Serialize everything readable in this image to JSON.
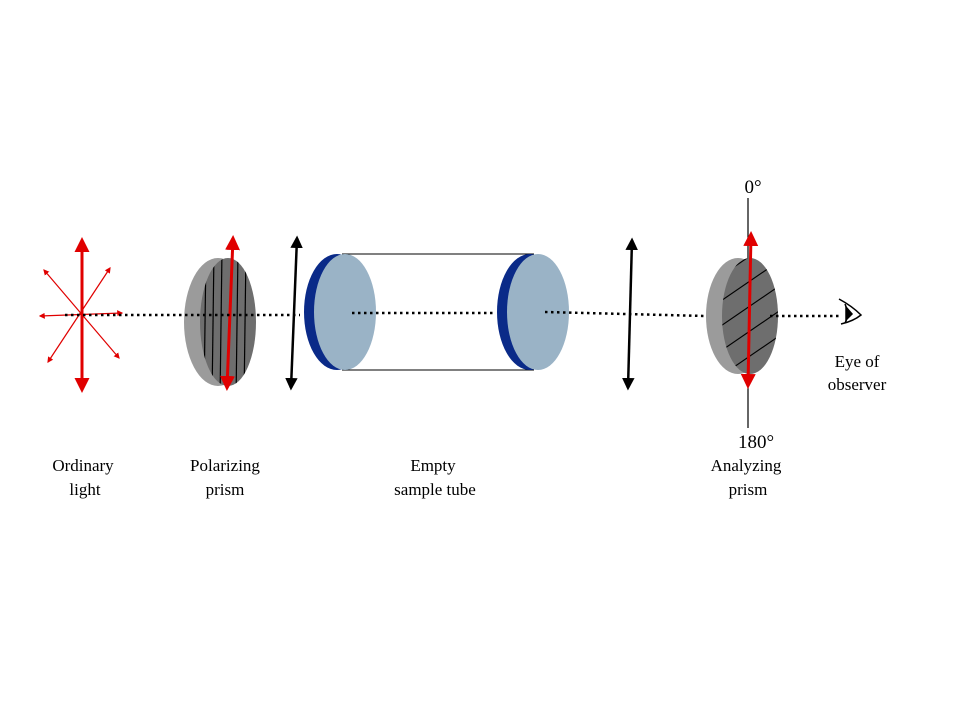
{
  "title": "Polarimeter: ordinary light through polarizing prism, empty sample tube and analyzing prism",
  "labels": {
    "ordinary_light": [
      "Ordinary",
      "light"
    ],
    "polarizing_prism": [
      "Polarizing",
      "prism"
    ],
    "sample_tube": [
      "Empty",
      "sample tube"
    ],
    "analyzing_prism": [
      "Analyzing",
      "prism"
    ],
    "observer": [
      "Eye of",
      "observer"
    ],
    "angle_top": "0°",
    "angle_bottom": "180°"
  },
  "colors": {
    "light_vector": "#e00000",
    "polarized_vector": "#000000",
    "disc_face": "#9ab3c6",
    "disc_rim": "#0a2a88",
    "prism_rim": "#9b9b9b",
    "prism_face": "#6e6e6e",
    "beam": "#000000"
  },
  "icons": [
    "eye-icon",
    "arrow-icon"
  ]
}
